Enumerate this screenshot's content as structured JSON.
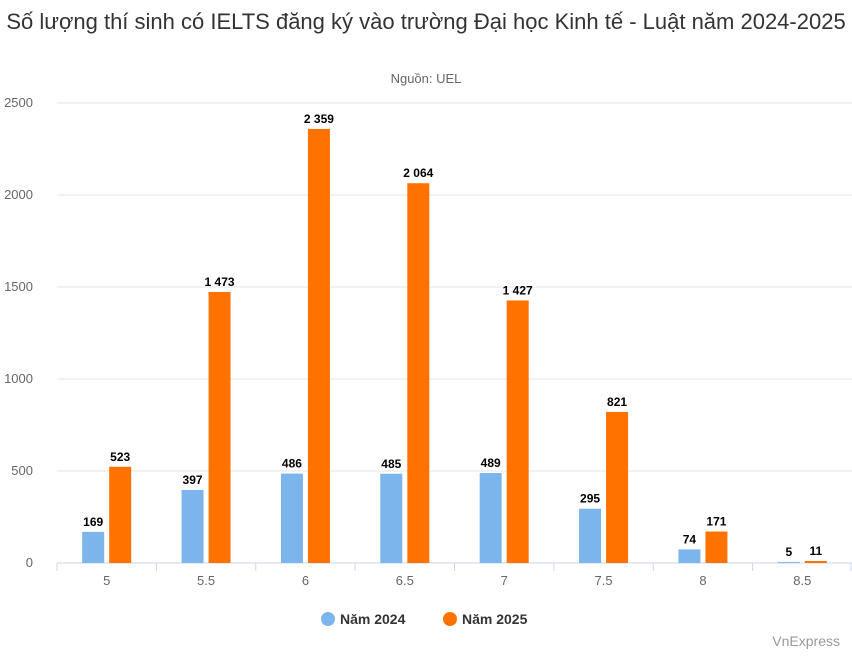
{
  "chart_data": {
    "type": "bar",
    "title": "Số lượng thí sinh có IELTS đăng ký vào trường Đại học Kinh tế - Luật năm 2024-2025",
    "subtitle": "Nguồn: UEL",
    "categories": [
      "5",
      "5.5",
      "6",
      "6.5",
      "7",
      "7.5",
      "8",
      "8.5"
    ],
    "series": [
      {
        "name": "Năm 2024",
        "color": "#7cb5ec",
        "values": [
          169,
          397,
          486,
          485,
          489,
          295,
          74,
          5
        ],
        "labels": [
          "169",
          "397",
          "486",
          "485",
          "489",
          "295",
          "74",
          "5"
        ]
      },
      {
        "name": "Năm 2025",
        "color": "#ff7200",
        "values": [
          523,
          1473,
          2359,
          2064,
          1427,
          821,
          171,
          11
        ],
        "labels": [
          "523",
          "1 473",
          "2 359",
          "2 064",
          "1 427",
          "821",
          "171",
          "11"
        ]
      }
    ],
    "y_ticks": [
      0,
      500,
      1000,
      1500,
      2000,
      2500
    ],
    "ylim": [
      0,
      2500
    ],
    "grid": true,
    "legend_position": "bottom-center"
  },
  "credit": "VnExpress"
}
